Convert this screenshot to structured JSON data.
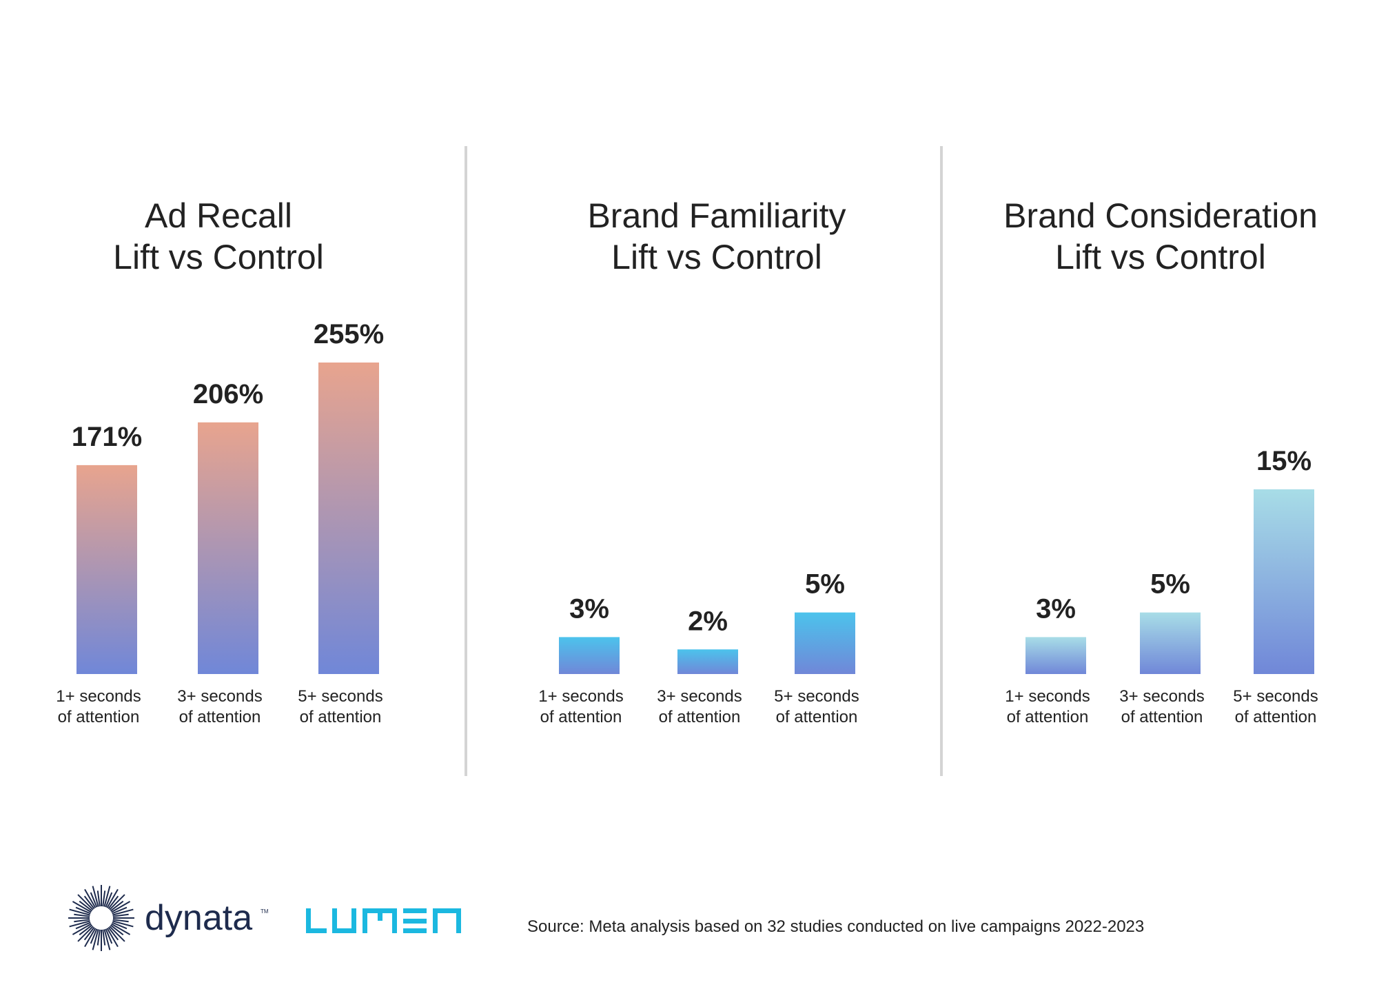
{
  "chart_data": [
    {
      "type": "bar",
      "title": [
        "Ad Recall",
        "Lift vs Control"
      ],
      "categories": [
        [
          "1+ seconds",
          "of attention"
        ],
        [
          "3+ seconds",
          "of attention"
        ],
        [
          "5+ seconds",
          "of attention"
        ]
      ],
      "values": [
        171,
        206,
        255
      ],
      "labels": [
        "171%",
        "206%",
        "255%"
      ],
      "unit": "%",
      "ylim": [
        0,
        255
      ],
      "grid": false,
      "colors": {
        "top": "#e8a48e",
        "bottom": "#7087d8"
      }
    },
    {
      "type": "bar",
      "title": [
        "Brand Familiarity",
        "Lift vs Control"
      ],
      "categories": [
        [
          "1+ seconds",
          "of attention"
        ],
        [
          "3+ seconds",
          "of attention"
        ],
        [
          "5+ seconds",
          "of attention"
        ]
      ],
      "values": [
        3,
        2,
        5
      ],
      "labels": [
        "3%",
        "2%",
        "5%"
      ],
      "unit": "%",
      "ylim": [
        0,
        15
      ],
      "grid": false,
      "colors": {
        "top": "#4cc3ec",
        "bottom": "#7087d8"
      }
    },
    {
      "type": "bar",
      "title": [
        "Brand Consideration",
        "Lift vs Control"
      ],
      "categories": [
        [
          "1+ seconds",
          "of attention"
        ],
        [
          "3+ seconds",
          "of attention"
        ],
        [
          "5+ seconds",
          "of attention"
        ]
      ],
      "values": [
        3,
        5,
        15
      ],
      "labels": [
        "3%",
        "5%",
        "15%"
      ],
      "unit": "%",
      "ylim": [
        0,
        15
      ],
      "grid": false,
      "colors": {
        "top": "#a8dde7",
        "bottom": "#7087d8"
      }
    }
  ],
  "footer": {
    "logos": {
      "dynata": {
        "text": "dynata",
        "tm": "TM",
        "color": "#1e2b4d"
      },
      "lumen": {
        "text": "LUMEN",
        "color": "#1bb8e0"
      }
    },
    "source": "Source: Meta analysis based on 32 studies conducted on live campaigns 2022-2023"
  },
  "colors": {
    "divider": "#d4d4d4",
    "text": "#222222"
  }
}
